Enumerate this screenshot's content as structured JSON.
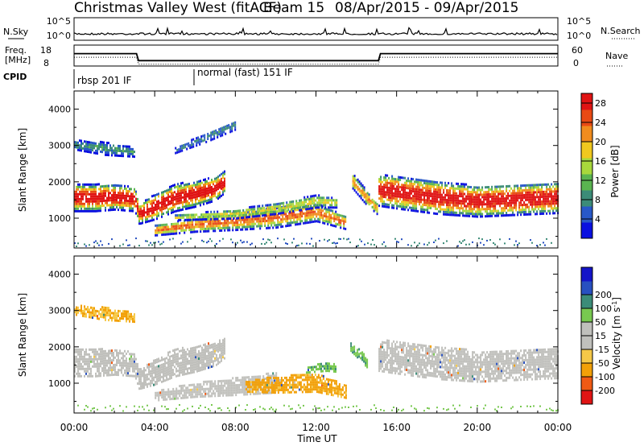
{
  "header": {
    "station": "Christmas Valley West (fitACF)",
    "beam": "Beam 15",
    "dates": "08/Apr/2015 - 09/Apr/2015"
  },
  "nsky_panel": {
    "left_label": "N.Sky",
    "right_label": "N.Search",
    "ticks": [
      "10^5",
      "10^0"
    ]
  },
  "freq_panel": {
    "left_label_1": "Freq.",
    "left_label_2": "[MHz]",
    "left_ticks": [
      "18",
      "8"
    ],
    "right_label": "Nave",
    "right_ticks": [
      "60",
      "0"
    ]
  },
  "cpid": {
    "label": "CPID",
    "modes": [
      {
        "label": "rbsp 201 IF",
        "start_hour": 0
      },
      {
        "label": "normal (fast) 151 IF",
        "start_hour": 6
      }
    ]
  },
  "colors": {
    "power": [
      "#0a10e0",
      "#2858c8",
      "#3c8c78",
      "#5ab450",
      "#a8d83c",
      "#f0c81e",
      "#f08c1e",
      "#e84a14",
      "#e01414"
    ],
    "velocity": [
      "#e01414",
      "#ef5a14",
      "#f2a008",
      "#f5c848",
      "#c0c0bc",
      "#c0c0bc",
      "#78c850",
      "#3c8c78",
      "#2850c0",
      "#1414c8"
    ]
  },
  "chart_data": [
    {
      "type": "line",
      "name": "noise-frequency",
      "x": [
        0,
        3.1,
        3.2,
        15.1,
        15.2,
        24
      ],
      "freq_mhz": [
        14.3,
        14.3,
        9.6,
        9.6,
        14.3,
        14.3
      ],
      "xlim": [
        0,
        24
      ]
    },
    {
      "type": "heatmap",
      "name": "power",
      "xlabel": "Time UT",
      "ylabel": "Slant Range [km]",
      "xlim": [
        0,
        24
      ],
      "ylim": [
        180,
        4500
      ],
      "xticks": [
        "00:00",
        "04:00",
        "08:00",
        "12:00",
        "16:00",
        "20:00",
        "00:00"
      ],
      "yticks": [
        "1000",
        "2000",
        "3000",
        "4000"
      ],
      "colorbar_label": "Power [dB]",
      "colorbar_ticks": [
        "4",
        "8",
        "12",
        "16",
        "20",
        "24",
        "28"
      ],
      "colorbar_range": [
        0,
        30
      ],
      "bands": [
        {
          "x": [
            0,
            1,
            2,
            3,
            3.2,
            4,
            5,
            6,
            7,
            7.5
          ],
          "center": [
            1600,
            1600,
            1620,
            1550,
            1150,
            1350,
            1600,
            1700,
            1850,
            2050
          ],
          "width": [
            750,
            750,
            700,
            650,
            550,
            700,
            750,
            700,
            650,
            600
          ],
          "peak": 30
        },
        {
          "x": [
            4,
            6,
            8,
            10,
            12,
            13.5
          ],
          "center": [
            700,
            850,
            950,
            1050,
            1200,
            900
          ],
          "width": [
            280,
            380,
            480,
            550,
            500,
            350
          ],
          "peak": 24
        },
        {
          "x": [
            5,
            8,
            10,
            12,
            13
          ],
          "center": [
            1050,
            1150,
            1300,
            1500,
            1450
          ],
          "width": [
            150,
            250,
            300,
            350,
            250
          ],
          "peak": 17
        },
        {
          "x": [
            0,
            1.5,
            3
          ],
          "center": [
            3050,
            2950,
            2850
          ],
          "width": [
            250,
            350,
            250
          ],
          "peak": 9
        },
        {
          "x": [
            5,
            6.5,
            8
          ],
          "center": [
            2900,
            3250,
            3600
          ],
          "width": [
            150,
            250,
            250
          ],
          "peak": 8
        },
        {
          "x": [
            13.8,
            14.4,
            15.0
          ],
          "center": [
            2050,
            1650,
            1300
          ],
          "width": [
            400,
            400,
            300
          ],
          "peak": 22
        },
        {
          "x": [
            15.1,
            16,
            18,
            20,
            22,
            24
          ],
          "center": [
            1800,
            1750,
            1600,
            1500,
            1550,
            1600
          ],
          "width": [
            850,
            900,
            900,
            850,
            850,
            850
          ],
          "peak": 30
        }
      ]
    },
    {
      "type": "heatmap",
      "name": "velocity",
      "xlabel": "Time UT",
      "ylabel": "Slant Range [km]",
      "xlim": [
        0,
        24
      ],
      "ylim": [
        180,
        4500
      ],
      "xticks": [
        "00:00",
        "04:00",
        "08:00",
        "12:00",
        "16:00",
        "20:00",
        "00:00"
      ],
      "yticks": [
        "1000",
        "2000",
        "3000",
        "4000"
      ],
      "colorbar_label": "Velocity [m s^-1]",
      "colorbar_ticks": [
        "-200",
        "-100",
        "-50",
        "-15",
        "15",
        "50",
        "100",
        "200"
      ],
      "colorbar_range": [
        -250,
        250
      ],
      "bands": [
        {
          "x": [
            0,
            1,
            2,
            3,
            3.2,
            4,
            5,
            6,
            7,
            7.5
          ],
          "center": [
            1600,
            1600,
            1620,
            1550,
            1150,
            1350,
            1600,
            1700,
            1850,
            2050
          ],
          "width": [
            750,
            750,
            700,
            650,
            550,
            700,
            750,
            700,
            650,
            600
          ],
          "v": 0
        },
        {
          "x": [
            4,
            6,
            8,
            10
          ],
          "center": [
            700,
            850,
            950,
            1050
          ],
          "width": [
            280,
            380,
            480,
            550
          ],
          "v": 0
        },
        {
          "x": [
            8.5,
            10,
            12,
            13.5
          ],
          "center": [
            950,
            1000,
            1050,
            800
          ],
          "width": [
            300,
            450,
            500,
            350
          ],
          "v": -65
        },
        {
          "x": [
            11.5,
            12.5,
            13
          ],
          "center": [
            1400,
            1500,
            1450
          ],
          "width": [
            150,
            250,
            200
          ],
          "v": 40
        },
        {
          "x": [
            13.7,
            14.1,
            14.5
          ],
          "center": [
            2050,
            1850,
            1600
          ],
          "width": [
            250,
            300,
            250
          ],
          "v": 40
        },
        {
          "x": [
            0,
            1.5,
            3
          ],
          "center": [
            3050,
            2950,
            2850
          ],
          "width": [
            250,
            350,
            250
          ],
          "v": -50
        },
        {
          "x": [
            15.1,
            16,
            18,
            20,
            22,
            24
          ],
          "center": [
            1800,
            1750,
            1600,
            1500,
            1550,
            1600
          ],
          "width": [
            850,
            900,
            900,
            850,
            850,
            850
          ],
          "v": 0
        }
      ]
    }
  ]
}
